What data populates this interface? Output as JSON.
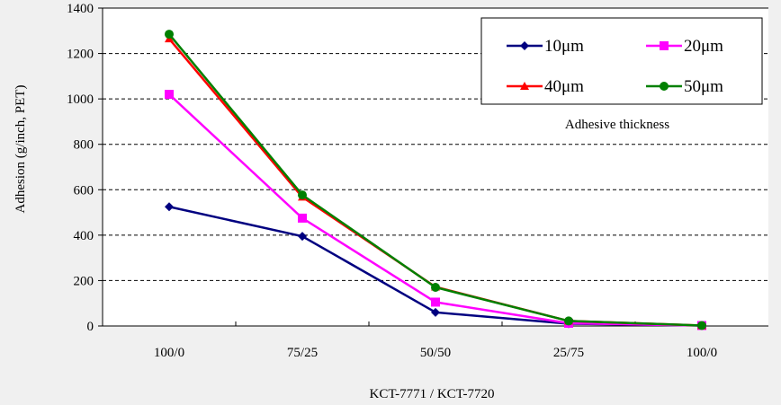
{
  "chart_data": {
    "type": "line",
    "xlabel": "KCT-7771 / KCT-7720",
    "ylabel": "Adhesion (g/inch, PET)",
    "categories": [
      "100/0",
      "75/25",
      "50/50",
      "25/75",
      "100/0"
    ],
    "ylim": [
      0,
      1400
    ],
    "yticks": [
      0,
      200,
      400,
      600,
      800,
      1000,
      1200,
      1400
    ],
    "grid": "horizontal dashed",
    "legend_position": "top-right",
    "legend_title": "Adhesive thickness",
    "series": [
      {
        "name": "10μm",
        "color": "#000080",
        "marker": "diamond",
        "values": [
          525,
          395,
          60,
          10,
          2
        ]
      },
      {
        "name": "20μm",
        "color": "#ff00ff",
        "marker": "square",
        "values": [
          1020,
          475,
          105,
          12,
          2
        ]
      },
      {
        "name": "40μm",
        "color": "#ff0000",
        "marker": "triangle",
        "values": [
          1265,
          568,
          172,
          22,
          2
        ]
      },
      {
        "name": "50μm",
        "color": "#008000",
        "marker": "circle",
        "values": [
          1285,
          577,
          170,
          22,
          2
        ]
      }
    ]
  }
}
